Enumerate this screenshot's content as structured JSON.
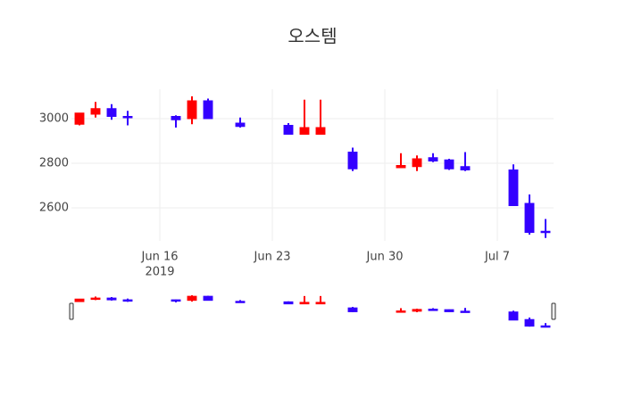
{
  "chart_data": {
    "type": "candlestick",
    "title": "오스템",
    "x": [
      "2019-06-11",
      "2019-06-12",
      "2019-06-13",
      "2019-06-14",
      "2019-06-17",
      "2019-06-18",
      "2019-06-19",
      "2019-06-21",
      "2019-06-24",
      "2019-06-25",
      "2019-06-26",
      "2019-06-28",
      "2019-07-01",
      "2019-07-02",
      "2019-07-03",
      "2019-07-04",
      "2019-07-05",
      "2019-07-08",
      "2019-07-09",
      "2019-07-10"
    ],
    "open": [
      2975,
      3020,
      3045,
      3010,
      3010,
      3000,
      3080,
      2980,
      2970,
      2930,
      2930,
      2850,
      2780,
      2785,
      2825,
      2815,
      2785,
      2770,
      2620,
      2495
    ],
    "high": [
      3025,
      3075,
      3065,
      3035,
      3015,
      3100,
      3090,
      3005,
      2980,
      3085,
      3085,
      2870,
      2845,
      2835,
      2845,
      2820,
      2850,
      2795,
      2660,
      2550
    ],
    "low": [
      2970,
      3005,
      2995,
      2970,
      2960,
      2975,
      3000,
      2960,
      2930,
      2930,
      2930,
      2765,
      2780,
      2765,
      2805,
      2770,
      2765,
      2610,
      2480,
      2465
    ],
    "close": [
      3025,
      3045,
      3010,
      3005,
      2995,
      3080,
      3000,
      2965,
      2930,
      2960,
      2960,
      2775,
      2790,
      2820,
      2810,
      2775,
      2770,
      2610,
      2490,
      2490
    ],
    "increasing_color": "#ff0000",
    "decreasing_color": "#3300ff",
    "xlim": [
      "2019-06-10T12:00",
      "2019-07-10T12:00"
    ],
    "xticks": [
      {
        "value": "2019-06-16",
        "label": "Jun 16",
        "sublabel": "2019"
      },
      {
        "value": "2019-06-23",
        "label": "Jun 23"
      },
      {
        "value": "2019-06-30",
        "label": "Jun 30"
      },
      {
        "value": "2019-07-07",
        "label": "Jul 7"
      }
    ],
    "ylim": [
      2452,
      3132
    ],
    "yticks": [
      2600,
      2800,
      3000
    ],
    "grid": true,
    "rangeslider": true
  }
}
